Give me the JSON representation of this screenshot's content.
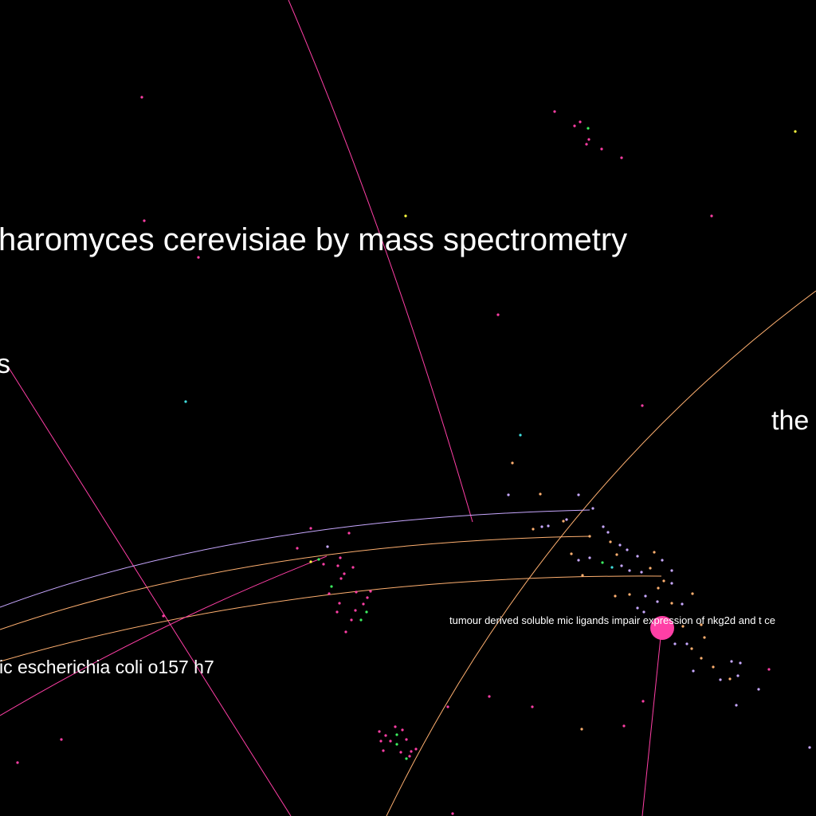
{
  "labels": {
    "title_large": "haromyces cerevisiae by mass spectrometry",
    "fragment_left": "s",
    "fragment_right": "the",
    "ecoli": "ic escherichia coli o157 h7",
    "highlight": "tumour derived soluble mic ligands impair expression of nkg2d and t ce"
  },
  "colors": {
    "background": "#000000",
    "magenta": "#ff3fa6",
    "lavender": "#c8a8ff",
    "peach": "#ffb070",
    "cyan": "#40e0e0",
    "green": "#3cf060",
    "yellow": "#ffff40",
    "highlight_node": "#ff3fa6",
    "text": "#ffffff"
  }
}
